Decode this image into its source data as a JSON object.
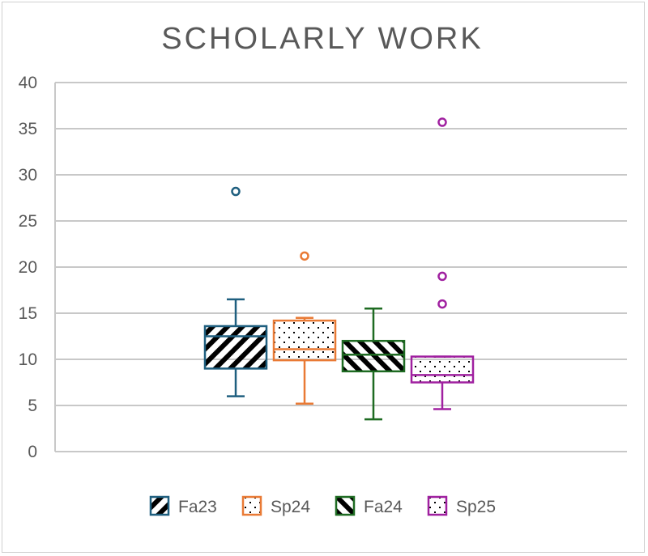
{
  "chart_data": {
    "type": "box",
    "title": "SCHOLARLY WORK",
    "xlabel": "",
    "ylabel": "",
    "ylim": [
      0,
      40
    ],
    "yticks": [
      0,
      5,
      10,
      15,
      20,
      25,
      30,
      35,
      40
    ],
    "grid": true,
    "legend_position": "bottom",
    "series": [
      {
        "name": "Fa23",
        "color": "#1f5f7f",
        "pattern": "diagonal-down",
        "min": 6,
        "q1": 9,
        "median": 12.5,
        "q3": 13.6,
        "max": 16.5,
        "outliers": [
          28.2
        ]
      },
      {
        "name": "Sp24",
        "color": "#e97a35",
        "pattern": "dots",
        "min": 5.2,
        "q1": 9.9,
        "median": 11.1,
        "q3": 14.2,
        "max": 14.5,
        "outliers": [
          21.2
        ]
      },
      {
        "name": "Fa24",
        "color": "#1e6b22",
        "pattern": "diagonal-up",
        "min": 3.5,
        "q1": 8.7,
        "median": 10.5,
        "q3": 12,
        "max": 15.5,
        "outliers": []
      },
      {
        "name": "Sp25",
        "color": "#a020a0",
        "pattern": "dots",
        "min": 4.6,
        "q1": 7.5,
        "median": 8.3,
        "q3": 10.3,
        "max": 10.3,
        "outliers": [
          16,
          19,
          35.7
        ]
      }
    ]
  }
}
